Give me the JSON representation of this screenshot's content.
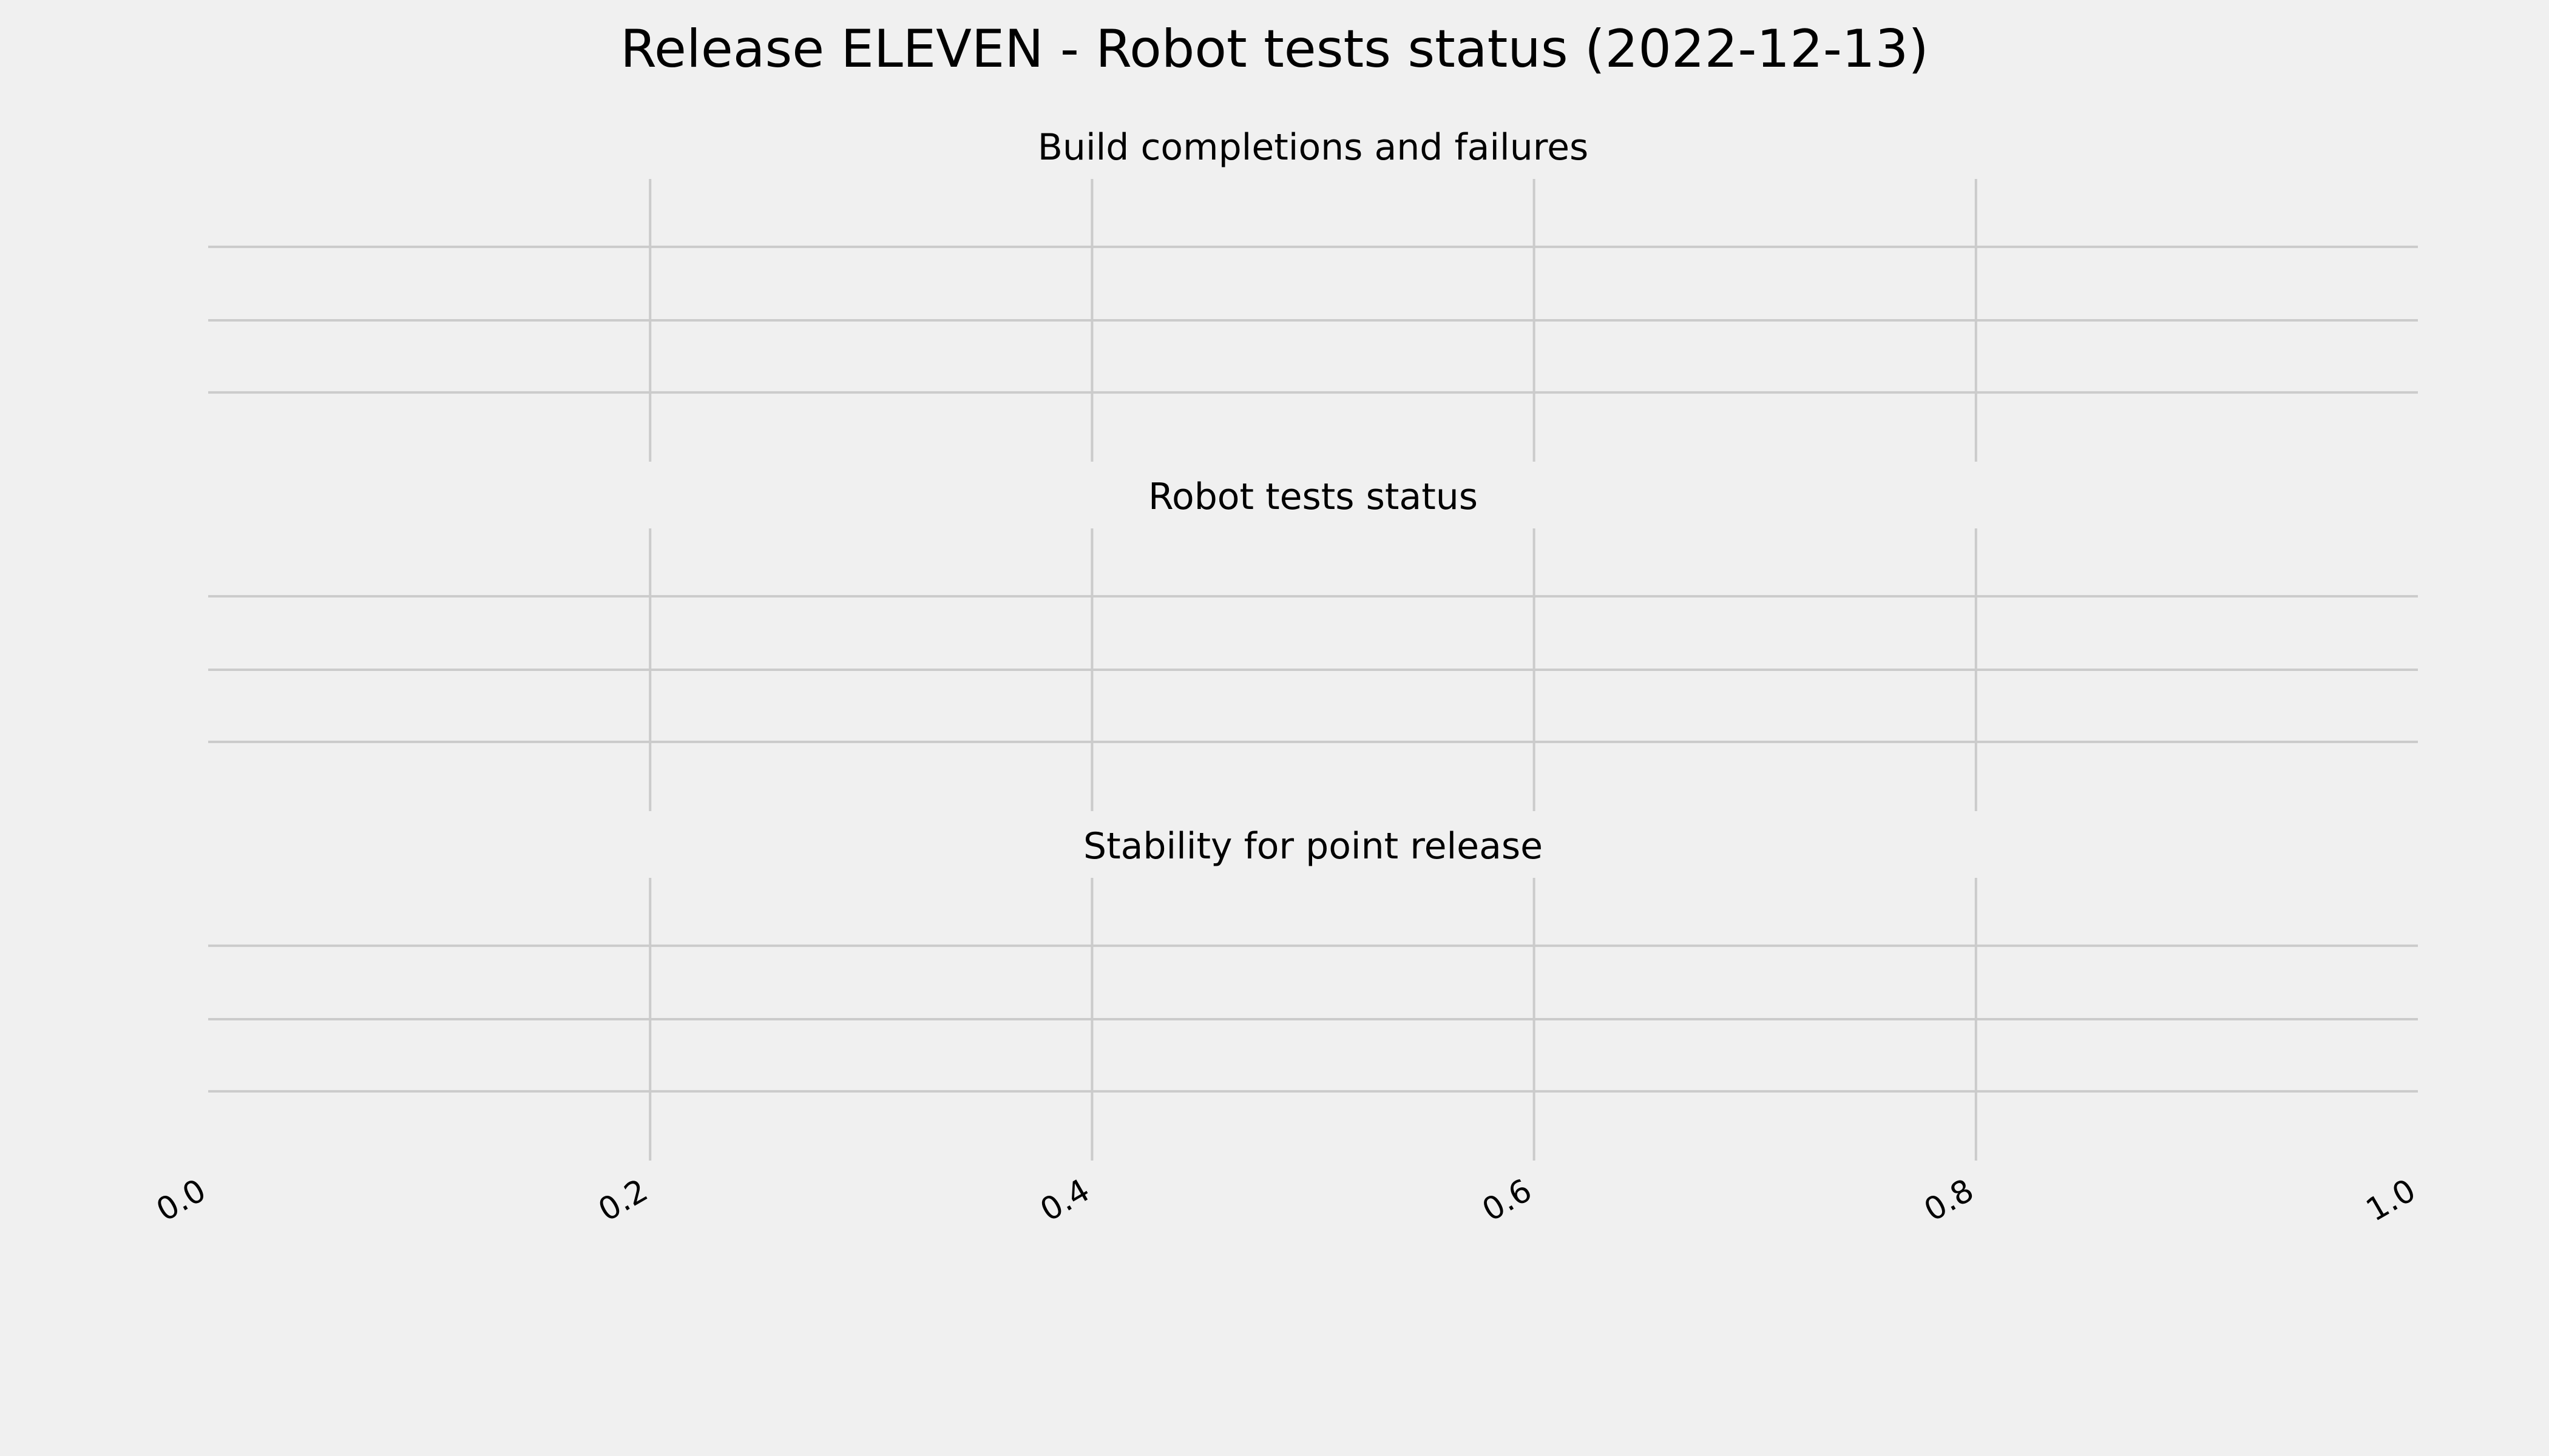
{
  "chart_data": {
    "title": "Release ELEVEN - Robot tests status (2022-12-13)",
    "background": "#f0f0f0",
    "grid_color": "#cbcbcb",
    "grid": true,
    "shared_x": true,
    "xlim": [
      0.0,
      1.0
    ],
    "x_ticks": [
      "0.0",
      "0.2",
      "0.4",
      "0.6",
      "0.8",
      "1.0"
    ],
    "subplots": [
      {
        "type": "line",
        "title": "Build completions and failures",
        "series": []
      },
      {
        "type": "line",
        "title": "Robot tests status",
        "series": []
      },
      {
        "type": "line",
        "title": "Stability for point release",
        "series": []
      }
    ]
  }
}
